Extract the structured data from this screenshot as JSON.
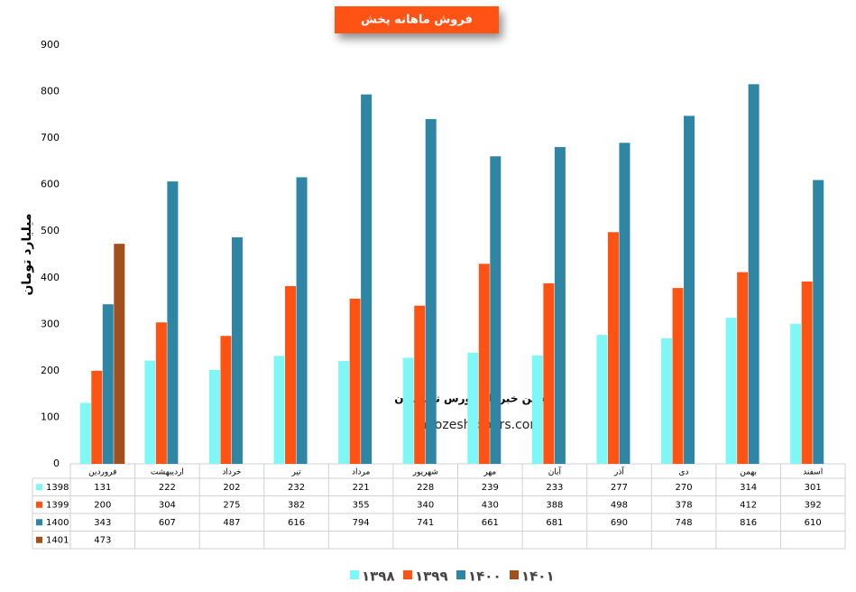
{
  "chart_data": {
    "type": "bar",
    "title": "فروش ماهانه پخش",
    "y_label": "میلیارد تومان",
    "watermark": [
      "انجمن خبرگان بورس تهــــران",
      "amoozesh-boors.com"
    ],
    "categories": [
      "فروردین",
      "اردیبهشت",
      "خرداد",
      "تیر",
      "مرداد",
      "شهریور",
      "مهر",
      "آبان",
      "آذر",
      "دی",
      "بهمن",
      "اسفند"
    ],
    "table_row_labels": [
      "1398",
      "1399",
      "1400",
      "1401"
    ],
    "series": [
      {
        "name": "۱۳۹۸",
        "color": "#80f7f7",
        "values": [
          131,
          222,
          202,
          232,
          221,
          228,
          239,
          233,
          277,
          270,
          314,
          301
        ]
      },
      {
        "name": "۱۳۹۹",
        "color": "#ff5314",
        "values": [
          200,
          304,
          275,
          382,
          355,
          340,
          430,
          388,
          498,
          378,
          412,
          392
        ]
      },
      {
        "name": "۱۴۰۰",
        "color": "#2e86a4",
        "values": [
          343,
          607,
          487,
          616,
          794,
          741,
          661,
          681,
          690,
          748,
          816,
          610
        ]
      },
      {
        "name": "۱۴۰۱",
        "color": "#a0501c",
        "values": [
          473,
          null,
          null,
          null,
          null,
          null,
          null,
          null,
          null,
          null,
          null,
          null
        ]
      }
    ],
    "ylim": [
      0,
      900
    ],
    "yticks": [
      0,
      100,
      200,
      300,
      400,
      500,
      600,
      700,
      800,
      900
    ]
  }
}
